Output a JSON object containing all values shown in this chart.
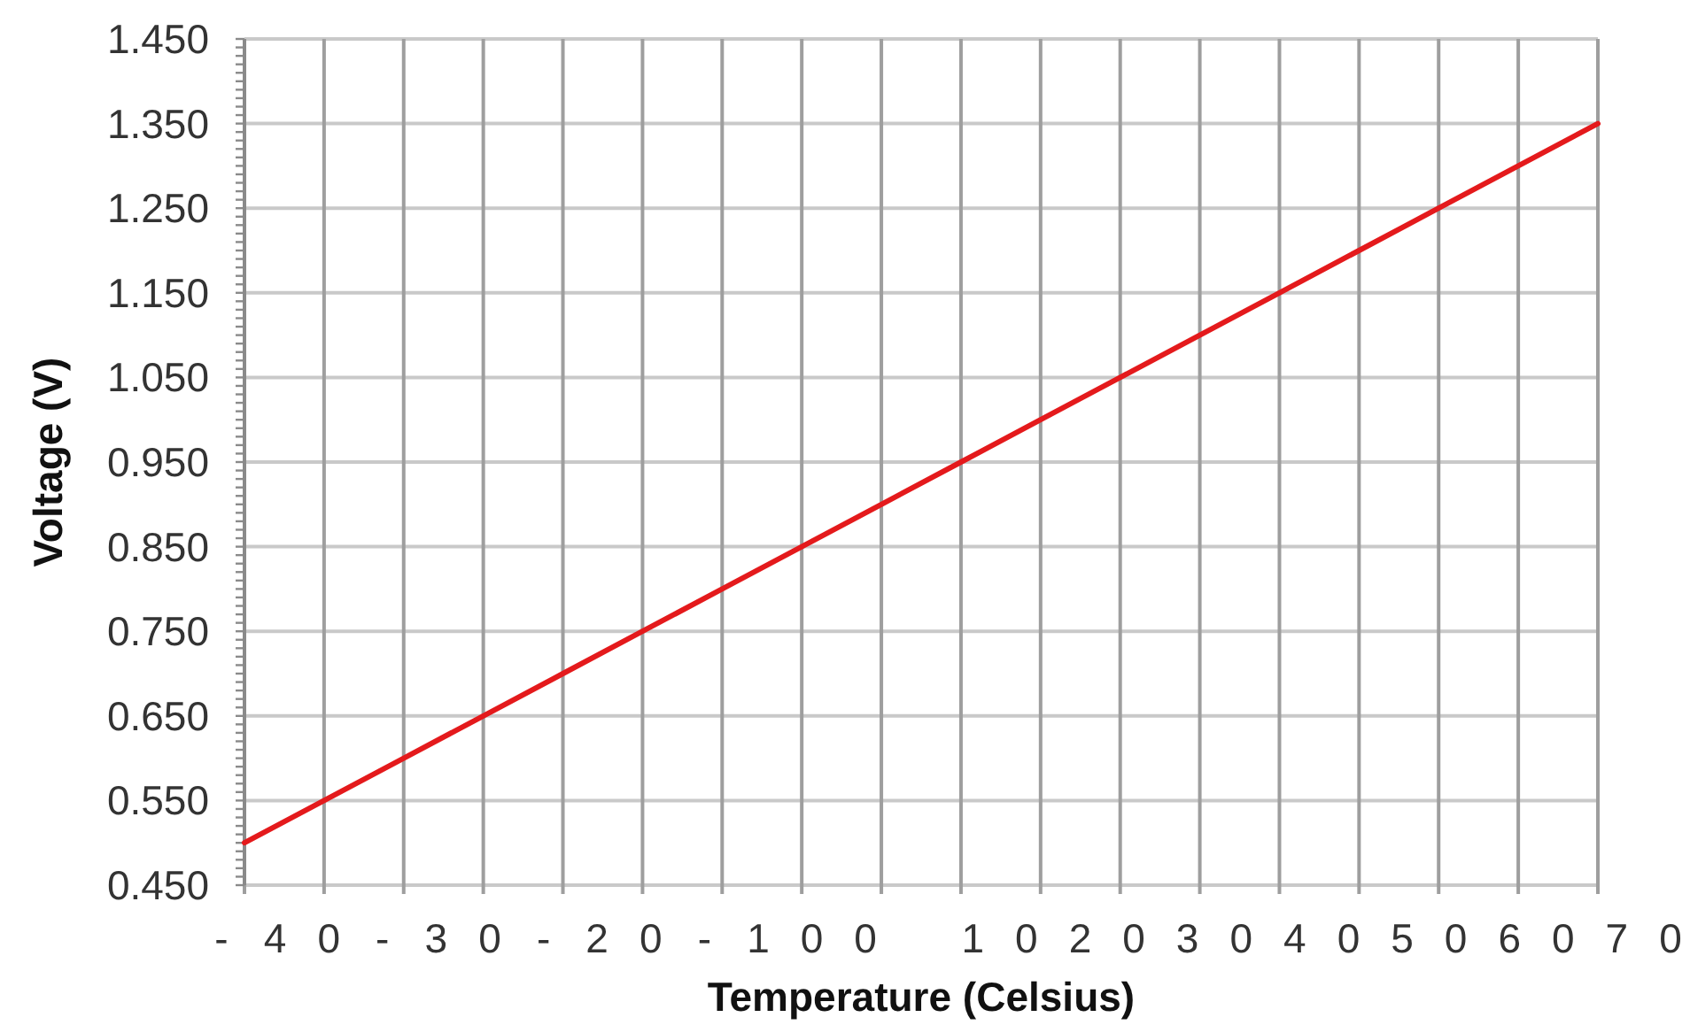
{
  "chart_data": {
    "type": "line",
    "xlabel": "Temperature (Celsius)",
    "ylabel": "Voltage (V)",
    "annotations": [
      "- 4 0 - 3 0 - 2 0 - 1 0 0   1 0 2 0 3 0 4 0 5 0 6 0 7 0"
    ],
    "categories": [
      null,
      null,
      null,
      null,
      null,
      null,
      null,
      null,
      null,
      null,
      null,
      null,
      null,
      null,
      null,
      null,
      null,
      null
    ],
    "series": [
      {
        "color": "#e41a1c",
        "values": [
          0.5,
          0.55,
          0.6,
          0.65,
          0.7,
          0.75,
          0.8,
          0.85,
          0.9,
          0.95,
          1.0,
          1.05,
          1.1,
          1.15,
          1.2,
          1.25,
          1.3,
          1.35
        ]
      }
    ],
    "ylim": [
      0.45,
      1.45
    ],
    "yticks": [
      {
        "value": 0.45,
        "label": "0.450"
      },
      {
        "value": 0.46,
        "label": null
      },
      {
        "value": 0.47,
        "label": null
      },
      {
        "value": 0.48,
        "label": null
      },
      {
        "value": 0.49,
        "label": null
      },
      {
        "value": 0.5,
        "label": null
      },
      {
        "value": 0.51,
        "label": null
      },
      {
        "value": 0.52,
        "label": null
      },
      {
        "value": 0.53,
        "label": null
      },
      {
        "value": 0.54,
        "label": null
      },
      {
        "value": 0.55,
        "label": "0.550"
      },
      {
        "value": 0.56,
        "label": null
      },
      {
        "value": 0.57,
        "label": null
      },
      {
        "value": 0.58,
        "label": null
      },
      {
        "value": 0.59,
        "label": null
      },
      {
        "value": 0.6,
        "label": null
      },
      {
        "value": 0.61,
        "label": null
      },
      {
        "value": 0.62,
        "label": null
      },
      {
        "value": 0.63,
        "label": null
      },
      {
        "value": 0.64,
        "label": null
      },
      {
        "value": 0.65,
        "label": "0.650"
      },
      {
        "value": 0.66,
        "label": null
      },
      {
        "value": 0.67,
        "label": null
      },
      {
        "value": 0.68,
        "label": null
      },
      {
        "value": 0.69,
        "label": null
      },
      {
        "value": 0.7,
        "label": null
      },
      {
        "value": 0.71,
        "label": null
      },
      {
        "value": 0.72,
        "label": null
      },
      {
        "value": 0.73,
        "label": null
      },
      {
        "value": 0.74,
        "label": null
      },
      {
        "value": 0.75,
        "label": "0.750"
      },
      {
        "value": 0.76,
        "label": null
      },
      {
        "value": 0.77,
        "label": null
      },
      {
        "value": 0.78,
        "label": null
      },
      {
        "value": 0.79,
        "label": null
      },
      {
        "value": 0.8,
        "label": null
      },
      {
        "value": 0.81,
        "label": null
      },
      {
        "value": 0.82,
        "label": null
      },
      {
        "value": 0.83,
        "label": null
      },
      {
        "value": 0.84,
        "label": null
      },
      {
        "value": 0.85,
        "label": "0.850"
      },
      {
        "value": 0.86,
        "label": null
      },
      {
        "value": 0.87,
        "label": null
      },
      {
        "value": 0.88,
        "label": null
      },
      {
        "value": 0.89,
        "label": null
      },
      {
        "value": 0.9,
        "label": null
      },
      {
        "value": 0.91,
        "label": null
      },
      {
        "value": 0.92,
        "label": null
      },
      {
        "value": 0.93,
        "label": null
      },
      {
        "value": 0.94,
        "label": null
      },
      {
        "value": 0.95,
        "label": "0.950"
      },
      {
        "value": 0.96,
        "label": null
      },
      {
        "value": 0.97,
        "label": null
      },
      {
        "value": 0.98,
        "label": null
      },
      {
        "value": 0.99,
        "label": null
      },
      {
        "value": 1.0,
        "label": null
      },
      {
        "value": 1.01,
        "label": null
      },
      {
        "value": 1.02,
        "label": null
      },
      {
        "value": 1.03,
        "label": null
      },
      {
        "value": 1.04,
        "label": null
      },
      {
        "value": 1.05,
        "label": "1.050"
      },
      {
        "value": 1.06,
        "label": null
      },
      {
        "value": 1.07,
        "label": null
      },
      {
        "value": 1.08,
        "label": null
      },
      {
        "value": 1.09,
        "label": null
      },
      {
        "value": 1.1,
        "label": null
      },
      {
        "value": 1.11,
        "label": null
      },
      {
        "value": 1.12,
        "label": null
      },
      {
        "value": 1.13,
        "label": null
      },
      {
        "value": 1.14,
        "label": null
      },
      {
        "value": 1.15,
        "label": "1.150"
      },
      {
        "value": 1.16,
        "label": null
      },
      {
        "value": 1.17,
        "label": null
      },
      {
        "value": 1.18,
        "label": null
      },
      {
        "value": 1.19,
        "label": null
      },
      {
        "value": 1.2,
        "label": null
      },
      {
        "value": 1.21,
        "label": null
      },
      {
        "value": 1.22,
        "label": null
      },
      {
        "value": 1.23,
        "label": null
      },
      {
        "value": 1.24,
        "label": null
      },
      {
        "value": 1.25,
        "label": "1.250"
      },
      {
        "value": 1.26,
        "label": null
      },
      {
        "value": 1.27,
        "label": null
      },
      {
        "value": 1.28,
        "label": null
      },
      {
        "value": 1.29,
        "label": null
      },
      {
        "value": 1.3,
        "label": null
      },
      {
        "value": 1.31,
        "label": null
      },
      {
        "value": 1.32,
        "label": null
      },
      {
        "value": 1.33,
        "label": null
      },
      {
        "value": 1.34,
        "label": null
      },
      {
        "value": 1.35,
        "label": "1.350"
      },
      {
        "value": 1.36,
        "label": null
      },
      {
        "value": 1.37,
        "label": null
      },
      {
        "value": 1.38,
        "label": null
      },
      {
        "value": 1.39,
        "label": null
      },
      {
        "value": 1.4,
        "label": null
      },
      {
        "value": 1.41,
        "label": null
      },
      {
        "value": 1.42,
        "label": null
      },
      {
        "value": 1.43,
        "label": null
      },
      {
        "value": 1.44,
        "label": null
      },
      {
        "value": 1.45,
        "label": "1.450"
      }
    ],
    "grid": true
  }
}
